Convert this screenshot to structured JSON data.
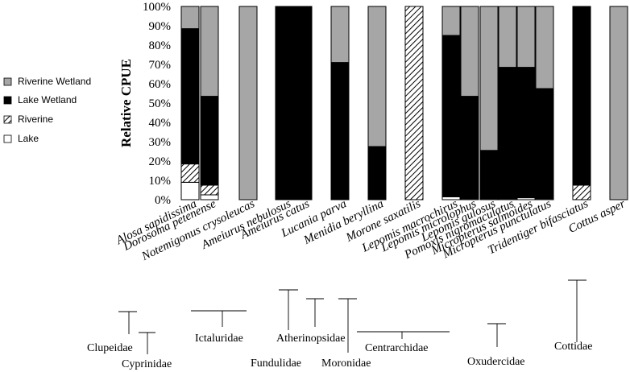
{
  "chart_data": {
    "type": "bar",
    "stacked": true,
    "ylabel": "Relative CPUE",
    "ylim": [
      0,
      100
    ],
    "yticks": [
      "0%",
      "10%",
      "20%",
      "30%",
      "40%",
      "50%",
      "60%",
      "70%",
      "80%",
      "90%",
      "100%"
    ],
    "legend_position": "left",
    "legend": [
      "Riverine Wetland",
      "Lake Wetland",
      "Riverine",
      "Lake"
    ],
    "categories": [
      "Alosa sapidissima",
      "Dorosoma petenense",
      "Notemigonus crysoleucas",
      "Ameiurus nebulosus",
      "Ameiurus catus",
      "Lucania parva",
      "Menidia beryllina",
      "Morone saxatilis",
      "Lepomis macrochirus",
      "Lepomis microlophus",
      "Lepomis gulosus",
      "Pomoxis nigromaculatus",
      "Micropterus salmoides",
      "Micropterus punctulatus",
      "Tridentiger bifasciatus",
      "Cottus asper"
    ],
    "series": [
      {
        "name": "Lake",
        "values": [
          9,
          2.5,
          0,
          0,
          0,
          0,
          0,
          0,
          1.5,
          0.5,
          0.5,
          0.5,
          1,
          0.5,
          0,
          0
        ]
      },
      {
        "name": "Riverine",
        "values": [
          9.5,
          5,
          0,
          0,
          0,
          0,
          0,
          100,
          0,
          0,
          0,
          0,
          0,
          0,
          7.5,
          0
        ]
      },
      {
        "name": "Lake Wetland",
        "values": [
          70,
          46,
          0,
          100,
          100,
          71,
          27.5,
          0,
          83.5,
          53,
          25,
          68,
          67.5,
          57,
          92.5,
          0
        ]
      },
      {
        "name": "Riverine Wetland",
        "values": [
          11.5,
          46.5,
          100,
          0,
          0,
          29,
          72.5,
          0,
          15,
          46.5,
          74.5,
          31.5,
          31.5,
          42.5,
          0,
          100
        ]
      }
    ],
    "families": [
      "Clupeidae",
      "Cyprinidae",
      "Ictaluridae",
      "Fundulidae",
      "Atherinopsidae",
      "Moronidae",
      "Centrarchidae",
      "Oxudercidae",
      "Cottidae"
    ],
    "colors": {
      "Riverine Wetland": "#a6a6a6",
      "Lake Wetland": "#000000",
      "Riverine": "hatch",
      "Lake": "#ffffff"
    }
  }
}
